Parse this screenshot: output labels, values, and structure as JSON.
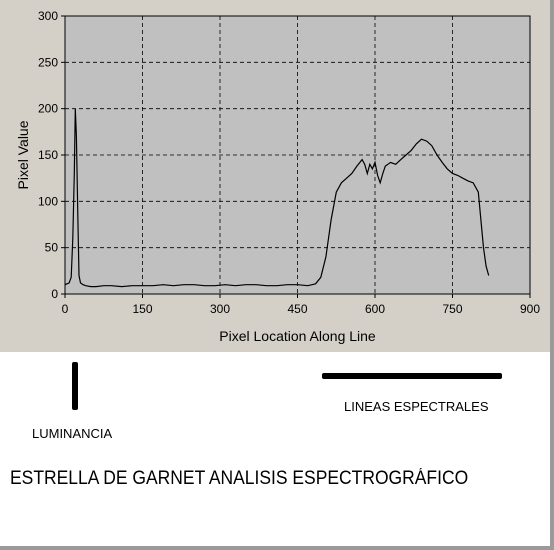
{
  "chart_data": {
    "type": "line",
    "xlabel": "Pixel Location Along Line",
    "ylabel": "Pixel Value",
    "xlim": [
      0,
      900
    ],
    "ylim": [
      0,
      300
    ],
    "xticks": [
      0,
      150,
      300,
      450,
      600,
      750,
      900
    ],
    "yticks": [
      0,
      50,
      100,
      150,
      200,
      250,
      300
    ],
    "grid": true,
    "series": [
      {
        "x": [
          0,
          8,
          12,
          15,
          18,
          20,
          22,
          25,
          27,
          30,
          35,
          40,
          50,
          60,
          75,
          90,
          110,
          130,
          150,
          170,
          190,
          210,
          230,
          250,
          270,
          290,
          310,
          330,
          350,
          370,
          390,
          410,
          430,
          450,
          470,
          485,
          495,
          505,
          515,
          525,
          535,
          545,
          555,
          565,
          575,
          580,
          585,
          590,
          595,
          600,
          605,
          610,
          615,
          620,
          625,
          630,
          640,
          650,
          660,
          670,
          680,
          690,
          700,
          710,
          720,
          730,
          740,
          750,
          760,
          770,
          780,
          790,
          800,
          805,
          810,
          815,
          820
        ],
        "y": [
          10,
          12,
          18,
          60,
          130,
          200,
          170,
          80,
          20,
          12,
          10,
          9,
          8,
          8,
          9,
          9,
          8,
          9,
          9,
          9,
          10,
          9,
          10,
          10,
          9,
          9,
          10,
          9,
          10,
          10,
          9,
          9,
          10,
          10,
          9,
          11,
          18,
          40,
          80,
          110,
          120,
          125,
          130,
          138,
          145,
          140,
          130,
          140,
          135,
          142,
          128,
          120,
          130,
          138,
          140,
          142,
          140,
          145,
          150,
          155,
          162,
          167,
          165,
          160,
          150,
          142,
          135,
          130,
          128,
          125,
          122,
          120,
          110,
          80,
          50,
          30,
          20
        ]
      }
    ]
  },
  "annotations": {
    "luminance_label": "LUMINANCIA",
    "spectral_label": "LINEAS ESPECTRALES",
    "caption": "ESTRELLA DE GARNET ANALISIS ESPECTROGRÁFICO"
  }
}
